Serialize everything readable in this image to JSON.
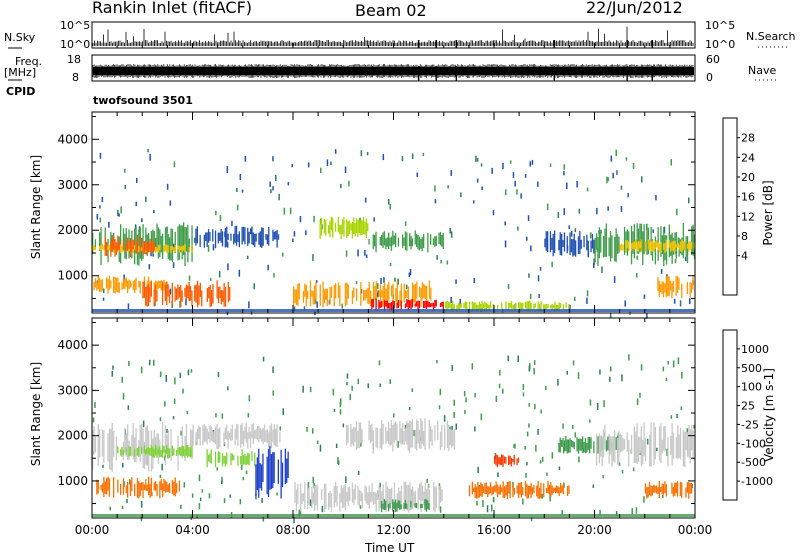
{
  "header": {
    "site": "Rankin Inlet (fitACF)",
    "beam": "Beam 02",
    "date": "22/Jun/2012"
  },
  "status_panels": {
    "nsky_label": "N.Sky",
    "nsky_ticks": [
      "10^5",
      "10^0"
    ],
    "nsearch_label": "N.Search",
    "nsearch_ticks": [
      "10^5",
      "10^0"
    ],
    "freq_label": "Freq.",
    "freq_unit": "[MHz]",
    "freq_ticks": [
      "18",
      "8"
    ],
    "nave_label": "Nave",
    "nave_ticks": [
      "60",
      "0"
    ],
    "cpid_label": "CPID",
    "cpid_value": "twofsound 3501"
  },
  "power_colorbar": {
    "label": "Power [dB]",
    "ticks": [
      "28",
      "24",
      "20",
      "16",
      "12",
      "8",
      "4"
    ],
    "colors": [
      "#ff0000",
      "#ff5a00",
      "#ff9a00",
      "#f2c400",
      "#a8d400",
      "#3f9c4a",
      "#2e7d5a",
      "#1f4fb0",
      "#0000ff"
    ]
  },
  "velocity_colorbar": {
    "label": "Velocity [m s-1]",
    "ticks": [
      "1000",
      "500",
      "100",
      "25",
      "-25",
      "-100",
      "-500",
      "-1000"
    ],
    "colors": [
      "#1e40c8",
      "#2c7d88",
      "#3d9a4d",
      "#7fd23a",
      "#c8c8c8",
      "#f0a000",
      "#ff7000",
      "#ff3a00",
      "#ff0000"
    ]
  },
  "chart_data": {
    "type": "heatmap",
    "panels": [
      {
        "name": "power",
        "ylabel": "Slant Range [km]"
      },
      {
        "name": "velocity",
        "ylabel": "Slant Range [km]"
      }
    ],
    "xlabel": "Time UT",
    "x_ticks": [
      "00:00",
      "04:00",
      "08:00",
      "12:00",
      "16:00",
      "20:00",
      "00:00"
    ],
    "xlim_hours": [
      0,
      24
    ],
    "y_ticks": [
      1000,
      2000,
      3000,
      4000
    ],
    "ylim_km": [
      180,
      4600
    ],
    "power_regions": [
      {
        "t0": 0.0,
        "t1": 4.0,
        "r0": 1200,
        "r1": 2200,
        "color": "#3f9c4a"
      },
      {
        "t0": 0.0,
        "t1": 4.0,
        "r0": 1500,
        "r1": 1700,
        "color": "#f2c400"
      },
      {
        "t0": 0.0,
        "t1": 3.0,
        "r0": 600,
        "r1": 1000,
        "color": "#ff9a00"
      },
      {
        "t0": 0.5,
        "t1": 2.5,
        "r0": 1400,
        "r1": 1900,
        "color": "#ff5a00"
      },
      {
        "t0": 2.0,
        "t1": 5.5,
        "r0": 300,
        "r1": 900,
        "color": "#ff5a00"
      },
      {
        "t0": 4.0,
        "t1": 7.5,
        "r0": 1600,
        "r1": 2100,
        "color": "#1f4fb0"
      },
      {
        "t0": 8.0,
        "t1": 13.5,
        "r0": 300,
        "r1": 900,
        "color": "#ff9a00"
      },
      {
        "t0": 11.0,
        "t1": 14.0,
        "r0": 220,
        "r1": 500,
        "color": "#ff0000"
      },
      {
        "t0": 9.0,
        "t1": 11.0,
        "r0": 1800,
        "r1": 2300,
        "color": "#a8d400"
      },
      {
        "t0": 11.0,
        "t1": 14.0,
        "r0": 1500,
        "r1": 2000,
        "color": "#3f9c4a"
      },
      {
        "t0": 14.0,
        "t1": 19.0,
        "r0": 200,
        "r1": 450,
        "color": "#a8d400"
      },
      {
        "t0": 18.0,
        "t1": 20.0,
        "r0": 1400,
        "r1": 2000,
        "color": "#1f4fb0"
      },
      {
        "t0": 20.0,
        "t1": 24.0,
        "r0": 1200,
        "r1": 2200,
        "color": "#3f9c4a"
      },
      {
        "t0": 21.0,
        "t1": 24.0,
        "r0": 1500,
        "r1": 1800,
        "color": "#f2c400"
      },
      {
        "t0": 22.5,
        "t1": 24.0,
        "r0": 500,
        "r1": 1000,
        "color": "#ff9a00"
      }
    ],
    "velocity_regions": [
      {
        "t0": 0.0,
        "t1": 4.0,
        "r0": 1200,
        "r1": 2300,
        "color": "#c8c8c8"
      },
      {
        "t0": 0.0,
        "t1": 3.5,
        "r0": 600,
        "r1": 1100,
        "color": "#ff7000"
      },
      {
        "t0": 1.0,
        "t1": 4.0,
        "r0": 1500,
        "r1": 1800,
        "color": "#7fd23a"
      },
      {
        "t0": 4.0,
        "t1": 7.5,
        "r0": 1700,
        "r1": 2300,
        "color": "#c8c8c8"
      },
      {
        "t0": 4.5,
        "t1": 6.5,
        "r0": 1300,
        "r1": 1700,
        "color": "#7fd23a"
      },
      {
        "t0": 6.5,
        "t1": 7.8,
        "r0": 600,
        "r1": 1800,
        "color": "#1e40c8"
      },
      {
        "t0": 8.0,
        "t1": 14.0,
        "r0": 300,
        "r1": 1000,
        "color": "#c8c8c8"
      },
      {
        "t0": 10.0,
        "t1": 14.5,
        "r0": 1600,
        "r1": 2400,
        "color": "#c8c8c8"
      },
      {
        "t0": 11.5,
        "t1": 13.5,
        "r0": 300,
        "r1": 600,
        "color": "#3d9a4d"
      },
      {
        "t0": 16.0,
        "t1": 17.0,
        "r0": 1300,
        "r1": 1600,
        "color": "#ff3a00"
      },
      {
        "t0": 15.0,
        "t1": 19.0,
        "r0": 600,
        "r1": 1000,
        "color": "#ff7000"
      },
      {
        "t0": 18.5,
        "t1": 21.0,
        "r0": 1600,
        "r1": 2000,
        "color": "#3d9a4d"
      },
      {
        "t0": 20.0,
        "t1": 24.0,
        "r0": 1300,
        "r1": 2300,
        "color": "#c8c8c8"
      },
      {
        "t0": 22.0,
        "t1": 24.0,
        "r0": 600,
        "r1": 1000,
        "color": "#ff7000"
      }
    ]
  }
}
